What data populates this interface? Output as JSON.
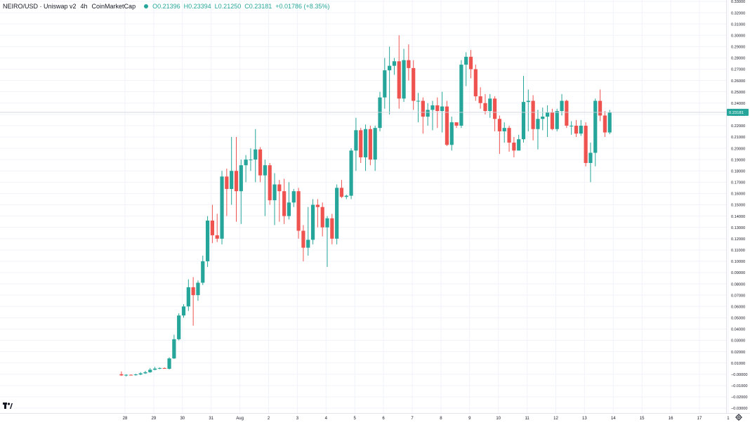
{
  "header": {
    "symbol": "NEIRO/USD · Uniswap v2",
    "interval": "4h",
    "source": "CoinMarketCap",
    "open": "O0.21396",
    "high": "H0.23394",
    "low": "L0.21250",
    "close": "C0.23181",
    "change": "+0.01786 (+8.35%)"
  },
  "colors": {
    "up": "#26a69a",
    "down": "#ef5350",
    "grid": "#f0f3fa",
    "axis_text": "#131722"
  },
  "icons": [
    "tradingview-logo-icon",
    "gear-icon"
  ],
  "chart_data": {
    "type": "candlestick",
    "title": "",
    "xlabel": "",
    "ylabel": "",
    "ylim": [
      -0.03,
      0.33
    ],
    "y_ticks": [
      "0.33000",
      "0.32000",
      "0.31000",
      "0.30000",
      "0.29000",
      "0.28000",
      "0.27000",
      "0.26000",
      "0.25000",
      "0.24000",
      "0.23000",
      "0.22000",
      "0.21000",
      "0.20000",
      "0.19000",
      "0.18000",
      "0.17000",
      "0.16000",
      "0.15000",
      "0.14000",
      "0.13000",
      "0.12000",
      "0.11000",
      "0.10000",
      "0.09000",
      "0.08000",
      "0.07000",
      "0.06000",
      "0.05000",
      "0.04000",
      "0.03000",
      "0.02000",
      "0.01000",
      "−0.00000",
      "−0.01000",
      "−0.02000",
      "−0.03000"
    ],
    "x_ticks": [
      "28",
      "29",
      "30",
      "31",
      "Aug",
      "2",
      "3",
      "4",
      "5",
      "6",
      "7",
      "8",
      "9",
      "10",
      "11",
      "12",
      "13",
      "14",
      "15",
      "16",
      "17",
      "1"
    ],
    "x_ticks_start_day": 28,
    "last_price_label": "0.23181",
    "last_price": 0.23181,
    "candles_start_day": 27.875,
    "candles_per_day": 6,
    "candles": [
      [
        -0.0,
        0.0025,
        -0.0015,
        -0.001
      ],
      [
        -0.001,
        0.0,
        -0.002,
        -0.0005
      ],
      [
        -0.0005,
        -0.0001,
        -0.0011,
        -0.0007
      ],
      [
        -0.0007,
        0.0005,
        -0.0012,
        -0.0002
      ],
      [
        -0.0002,
        0.0018,
        -0.0008,
        0.0008
      ],
      [
        0.0008,
        0.003,
        0.0003,
        0.0018
      ],
      [
        0.0018,
        0.0055,
        0.0013,
        0.004
      ],
      [
        0.004,
        0.0065,
        0.0035,
        0.005
      ],
      [
        0.005,
        0.006,
        0.0045,
        0.0055
      ],
      [
        0.0055,
        0.006,
        0.005,
        0.0048
      ],
      [
        0.0048,
        0.015,
        0.0043,
        0.014
      ],
      [
        0.014,
        0.035,
        0.0135,
        0.031
      ],
      [
        0.031,
        0.054,
        0.03,
        0.052
      ],
      [
        0.052,
        0.062,
        0.05,
        0.06
      ],
      [
        0.06,
        0.084,
        0.056,
        0.077
      ],
      [
        0.077,
        0.086,
        0.043,
        0.07
      ],
      [
        0.07,
        0.083,
        0.065,
        0.081
      ],
      [
        0.081,
        0.105,
        0.079,
        0.1
      ],
      [
        0.1,
        0.14,
        0.095,
        0.136
      ],
      [
        0.136,
        0.15,
        0.116,
        0.123
      ],
      [
        0.123,
        0.142,
        0.117,
        0.12
      ],
      [
        0.12,
        0.18,
        0.115,
        0.175
      ],
      [
        0.175,
        0.182,
        0.14,
        0.164
      ],
      [
        0.164,
        0.21,
        0.15,
        0.18
      ],
      [
        0.18,
        0.21,
        0.135,
        0.162
      ],
      [
        0.162,
        0.19,
        0.133,
        0.185
      ],
      [
        0.185,
        0.194,
        0.17,
        0.19
      ],
      [
        0.19,
        0.2,
        0.18,
        0.19
      ],
      [
        0.19,
        0.217,
        0.17,
        0.199
      ],
      [
        0.199,
        0.201,
        0.17,
        0.176
      ],
      [
        0.176,
        0.19,
        0.14,
        0.185
      ],
      [
        0.185,
        0.187,
        0.15,
        0.154
      ],
      [
        0.154,
        0.178,
        0.132,
        0.168
      ],
      [
        0.168,
        0.172,
        0.135,
        0.162
      ],
      [
        0.162,
        0.173,
        0.133,
        0.14
      ],
      [
        0.14,
        0.17,
        0.137,
        0.152
      ],
      [
        0.152,
        0.164,
        0.148,
        0.162
      ],
      [
        0.162,
        0.165,
        0.12,
        0.127
      ],
      [
        0.127,
        0.132,
        0.1,
        0.112
      ],
      [
        0.112,
        0.148,
        0.105,
        0.119
      ],
      [
        0.119,
        0.155,
        0.115,
        0.15
      ],
      [
        0.15,
        0.155,
        0.13,
        0.148
      ],
      [
        0.148,
        0.152,
        0.122,
        0.13
      ],
      [
        0.13,
        0.14,
        0.095,
        0.138
      ],
      [
        0.138,
        0.142,
        0.115,
        0.12
      ],
      [
        0.12,
        0.168,
        0.115,
        0.165
      ],
      [
        0.165,
        0.172,
        0.156,
        0.157
      ],
      [
        0.157,
        0.159,
        0.155,
        0.158
      ],
      [
        0.158,
        0.2,
        0.155,
        0.198
      ],
      [
        0.198,
        0.227,
        0.18,
        0.216
      ],
      [
        0.216,
        0.218,
        0.187,
        0.192
      ],
      [
        0.192,
        0.221,
        0.18,
        0.217
      ],
      [
        0.217,
        0.22,
        0.185,
        0.19
      ],
      [
        0.19,
        0.22,
        0.18,
        0.218
      ],
      [
        0.218,
        0.25,
        0.215,
        0.245
      ],
      [
        0.245,
        0.28,
        0.235,
        0.269
      ],
      [
        0.269,
        0.29,
        0.23,
        0.273
      ],
      [
        0.273,
        0.28,
        0.265,
        0.277
      ],
      [
        0.277,
        0.3,
        0.235,
        0.244
      ],
      [
        0.244,
        0.288,
        0.241,
        0.278
      ],
      [
        0.278,
        0.292,
        0.26,
        0.271
      ],
      [
        0.271,
        0.278,
        0.234,
        0.242
      ],
      [
        0.242,
        0.249,
        0.223,
        0.242
      ],
      [
        0.242,
        0.245,
        0.213,
        0.228
      ],
      [
        0.228,
        0.24,
        0.22,
        0.234
      ],
      [
        0.234,
        0.242,
        0.216,
        0.238
      ],
      [
        0.238,
        0.245,
        0.218,
        0.233
      ],
      [
        0.233,
        0.25,
        0.214,
        0.237
      ],
      [
        0.237,
        0.242,
        0.202,
        0.203
      ],
      [
        0.203,
        0.228,
        0.198,
        0.223
      ],
      [
        0.223,
        0.222,
        0.218,
        0.22
      ],
      [
        0.22,
        0.278,
        0.218,
        0.274
      ],
      [
        0.274,
        0.285,
        0.255,
        0.281
      ],
      [
        0.281,
        0.287,
        0.262,
        0.27
      ],
      [
        0.27,
        0.274,
        0.242,
        0.246
      ],
      [
        0.246,
        0.254,
        0.235,
        0.24
      ],
      [
        0.24,
        0.248,
        0.23,
        0.233
      ],
      [
        0.233,
        0.248,
        0.227,
        0.244
      ],
      [
        0.244,
        0.246,
        0.215,
        0.226
      ],
      [
        0.226,
        0.229,
        0.195,
        0.215
      ],
      [
        0.215,
        0.223,
        0.205,
        0.218
      ],
      [
        0.218,
        0.22,
        0.197,
        0.205
      ],
      [
        0.205,
        0.21,
        0.192,
        0.198
      ],
      [
        0.198,
        0.212,
        0.198,
        0.208
      ],
      [
        0.208,
        0.264,
        0.205,
        0.241
      ],
      [
        0.241,
        0.252,
        0.215,
        0.242
      ],
      [
        0.242,
        0.247,
        0.207,
        0.217
      ],
      [
        0.217,
        0.234,
        0.199,
        0.226
      ],
      [
        0.226,
        0.236,
        0.216,
        0.228
      ],
      [
        0.228,
        0.238,
        0.21,
        0.232
      ],
      [
        0.232,
        0.235,
        0.216,
        0.217
      ],
      [
        0.217,
        0.235,
        0.215,
        0.233
      ],
      [
        0.233,
        0.248,
        0.229,
        0.242
      ],
      [
        0.242,
        0.243,
        0.218,
        0.22
      ],
      [
        0.22,
        0.224,
        0.212,
        0.22
      ],
      [
        0.22,
        0.225,
        0.21,
        0.213
      ],
      [
        0.213,
        0.225,
        0.211,
        0.22
      ],
      [
        0.22,
        0.223,
        0.184,
        0.187
      ],
      [
        0.187,
        0.205,
        0.17,
        0.196
      ],
      [
        0.196,
        0.244,
        0.184,
        0.242
      ],
      [
        0.242,
        0.252,
        0.224,
        0.229
      ],
      [
        0.229,
        0.233,
        0.21,
        0.214
      ],
      [
        0.214,
        0.2339,
        0.2125,
        0.2318
      ]
    ]
  }
}
